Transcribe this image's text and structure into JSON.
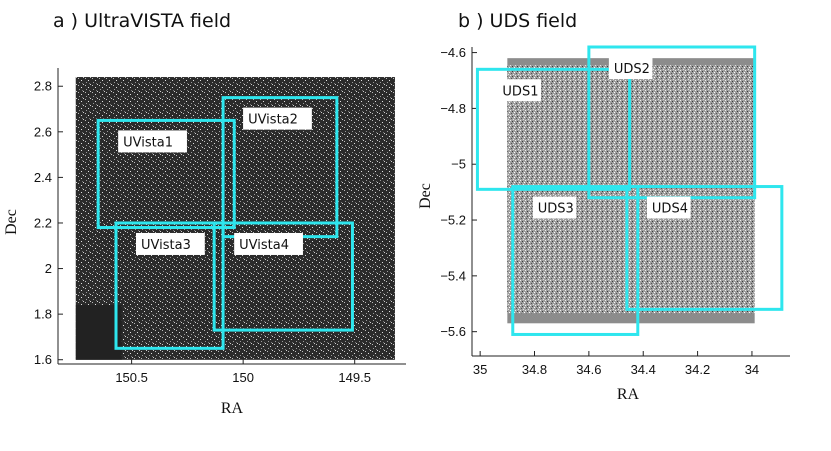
{
  "chart_data": [
    {
      "type": "scatter",
      "title": "a ) UltraVISTA field",
      "xlabel": "RA",
      "ylabel": "Dec",
      "xlim": [
        150.83,
        149.27
      ],
      "ylim": [
        1.59,
        2.88
      ],
      "x_ticks": [
        150.5,
        150,
        149.5
      ],
      "x_tick_labels": [
        "150.5",
        "150",
        "149.5"
      ],
      "y_ticks": [
        1.6,
        1.8,
        2,
        2.2,
        2.4,
        2.6,
        2.8
      ],
      "y_tick_labels": [
        "1.6",
        "1.8",
        "2",
        "2.2",
        "2.4",
        "2.6",
        "2.8"
      ],
      "image_extent": {
        "x": [
          150.75,
          149.32
        ],
        "y": [
          1.6,
          2.84
        ]
      },
      "image_color": "#3b3b3b",
      "box_color": "#2ee6ee",
      "fields": [
        {
          "name": "UVista1",
          "x": [
            150.65,
            150.04
          ],
          "y": [
            2.18,
            2.65
          ]
        },
        {
          "name": "UVista2",
          "x": [
            150.09,
            149.58
          ],
          "y": [
            2.14,
            2.75
          ]
        },
        {
          "name": "UVista3",
          "x": [
            150.57,
            150.09
          ],
          "y": [
            1.65,
            2.2
          ]
        },
        {
          "name": "UVista4",
          "x": [
            150.13,
            149.51
          ],
          "y": [
            1.73,
            2.2
          ]
        }
      ]
    },
    {
      "type": "scatter",
      "title": "b ) UDS field",
      "xlabel": "RA",
      "ylabel": "Dec",
      "xlim": [
        35.03,
        33.86
      ],
      "ylim": [
        -5.68,
        -4.58
      ],
      "x_ticks": [
        35,
        34.8,
        34.6,
        34.4,
        34.2,
        34
      ],
      "x_tick_labels": [
        "35",
        "34.8",
        "34.6",
        "34.4",
        "34.2",
        "34"
      ],
      "y_ticks": [
        -4.6,
        -4.8,
        -5,
        -5.2,
        -5.4,
        -5.6
      ],
      "y_tick_labels": [
        "−4.6",
        "−4.8",
        "−5",
        "−5.2",
        "−5.4",
        "−5.6"
      ],
      "image_extent": {
        "x": [
          34.9,
          33.99
        ],
        "y": [
          -5.57,
          -4.62
        ]
      },
      "image_color": "#8c8c8c",
      "box_color": "#2ee6ee",
      "fields": [
        {
          "name": "UDS1",
          "x": [
            35.01,
            34.45
          ],
          "y": [
            -5.09,
            -4.66
          ]
        },
        {
          "name": "UDS2",
          "x": [
            34.6,
            33.99
          ],
          "y": [
            -5.12,
            -4.58
          ]
        },
        {
          "name": "UDS3",
          "x": [
            34.88,
            34.42
          ],
          "y": [
            -5.61,
            -5.08
          ]
        },
        {
          "name": "UDS4",
          "x": [
            34.46,
            33.89
          ],
          "y": [
            -5.52,
            -5.08
          ]
        }
      ]
    }
  ]
}
